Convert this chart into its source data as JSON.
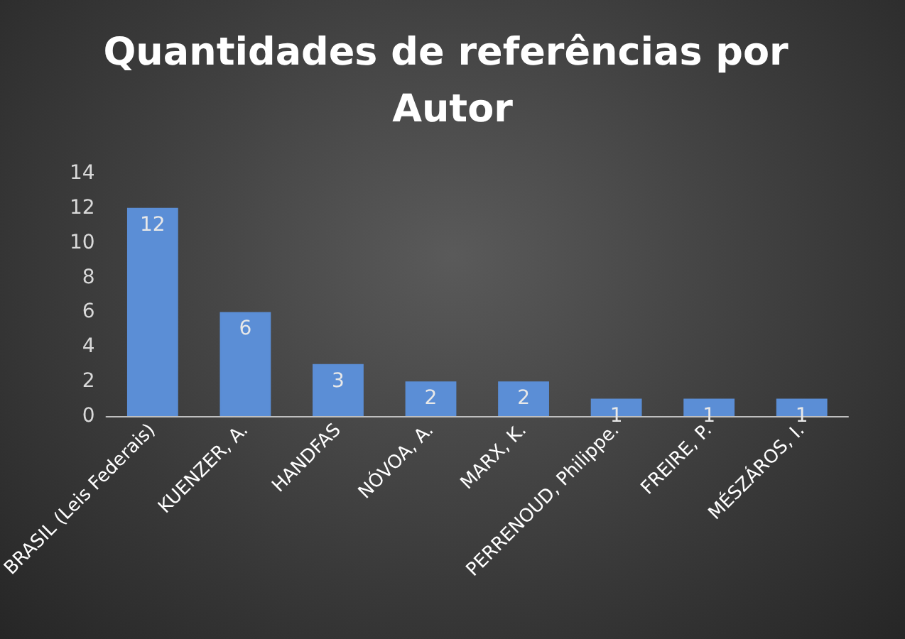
{
  "chart_data": {
    "type": "bar",
    "title": "Quantidades de referências por Autor",
    "categories": [
      "BRASIL (Leis Federais)",
      "KUENZER, A.",
      "HANDFAS",
      "NÓVOA, A.",
      "MARX, K.",
      "PERRENOUD, Philippe.",
      "FREIRE, P.",
      "MÉSZÁROS, I."
    ],
    "values": [
      12,
      6,
      3,
      2,
      2,
      1,
      1,
      1
    ],
    "color": "#5b8ed6",
    "ylim": [
      0,
      14
    ],
    "yticks": [
      0,
      2,
      4,
      6,
      8,
      10,
      12,
      14
    ],
    "grid": false,
    "data_labels": true
  }
}
